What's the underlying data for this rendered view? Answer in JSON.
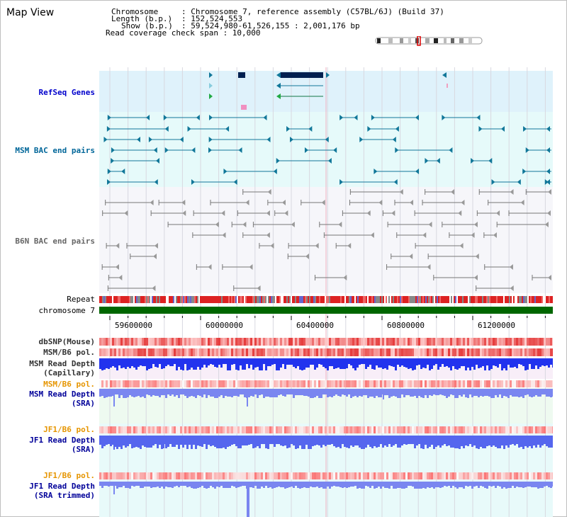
{
  "page": {
    "title": "Map View"
  },
  "header": {
    "chromosome_key": "Chromosome",
    "chromosome_value": ": Chromosome 7, reference assembly (C57BL/6J) (Build 37)",
    "length_key": "Length (b.p.)",
    "length_value": ": 152,524,553",
    "show_key": "Show (b.p.)",
    "show_value": ": 59,524,980-61,526,155 : 2,001,176 bp",
    "coverage_line": "Read coverage check span : 10,000"
  },
  "tracks": {
    "refseq": "RefSeq Genes",
    "msm_bac": "MSM BAC end pairs",
    "b6n_bac": "B6N BAC end pairs",
    "repeat": "Repeat",
    "chromosome": "chromosome 7",
    "dbsnp": "dbSNP(Mouse)",
    "msm_b6_pol_1": "MSM/B6 pol.",
    "msm_depth_cap_1": "MSM Read Depth",
    "msm_depth_cap_2": "(Capillary)",
    "msm_b6_pol_2": "MSM/B6 pol.",
    "msm_depth_sra_1": "MSM Read Depth",
    "msm_depth_sra_2": "(SRA)",
    "jf1_b6_pol_1": "JF1/B6 pol.",
    "jf1_depth_sra_1": "JF1 Read Depth",
    "jf1_depth_sra_2": "(SRA)",
    "jf1_b6_pol_2": "JF1/B6 pol.",
    "jf1_depth_trim_1": "JF1 Read Depth",
    "jf1_depth_trim_2": "(SRA trimmed)"
  },
  "axis": {
    "ticks": [
      "59600000",
      "60000000",
      "60400000",
      "60800000",
      "61200000"
    ]
  },
  "colors": {
    "refseq_label": "#0000cc",
    "msm_label": "#006699",
    "b6n_label": "#666666",
    "pol_label_orange": "#e69500",
    "depth_label": "#000099",
    "dark_label": "#333333",
    "chromosome_green": "#006600",
    "refseq_bg": "#dff2fb",
    "msm_bg": "#e6fafa",
    "b6n_bg": "#f6f6fa",
    "gene_navy": "#002050",
    "msm_feature": "#117799",
    "b6n_feature": "#777777",
    "depth_blue": "#2233ee",
    "depth_light": "#7a86f0"
  }
}
